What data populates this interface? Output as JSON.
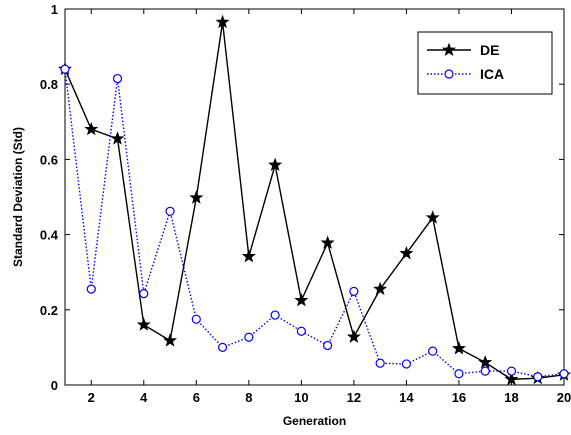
{
  "chart_data": {
    "type": "line",
    "title": "",
    "xlabel": "Generation",
    "ylabel": "Standard Deviation (Std)",
    "xlim": [
      1,
      20
    ],
    "ylim": [
      0,
      1
    ],
    "xticks": [
      2,
      4,
      6,
      8,
      10,
      12,
      14,
      16,
      18,
      20
    ],
    "yticks": [
      0,
      0.2,
      0.4,
      0.6,
      0.8,
      1
    ],
    "ytick_labels": [
      "0",
      "0.2",
      "0.4",
      "0.6",
      "0.8",
      "1"
    ],
    "grid": false,
    "legend_position": "top-right",
    "x": [
      1,
      2,
      3,
      4,
      5,
      6,
      7,
      8,
      9,
      10,
      11,
      12,
      13,
      14,
      15,
      16,
      17,
      18,
      19,
      20
    ],
    "series": [
      {
        "name": "DE",
        "color": "#000000",
        "line_style": "solid",
        "marker": "star",
        "values": [
          0.84,
          0.68,
          0.655,
          0.16,
          0.118,
          0.498,
          0.965,
          0.342,
          0.585,
          0.225,
          0.378,
          0.128,
          0.255,
          0.35,
          0.445,
          0.097,
          0.06,
          0.015,
          0.018,
          0.027
        ]
      },
      {
        "name": "ICA",
        "color": "#0000ff",
        "line_style": "dotted",
        "marker": "circle",
        "values": [
          0.84,
          0.255,
          0.815,
          0.243,
          0.462,
          0.175,
          0.1,
          0.127,
          0.186,
          0.143,
          0.105,
          0.249,
          0.058,
          0.056,
          0.09,
          0.03,
          0.037,
          0.037,
          0.022,
          0.03
        ]
      }
    ]
  }
}
